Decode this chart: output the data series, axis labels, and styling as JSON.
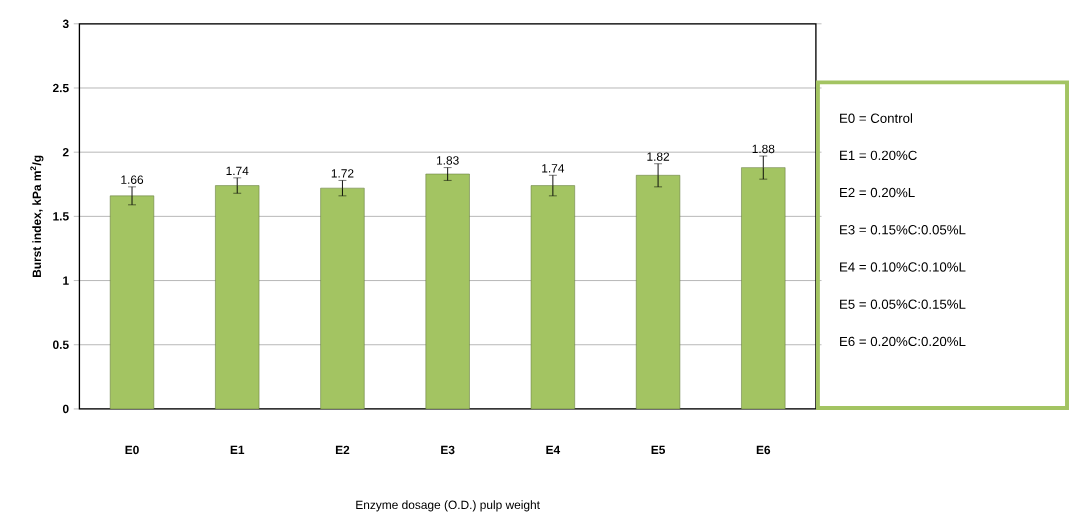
{
  "chart_data": {
    "type": "bar",
    "xlabel": "Enzyme dosage (O.D.) pulp weight",
    "ylabel": "Burst index, kPa m$^{2}$/g",
    "categories": [
      "E0",
      "E1",
      "E2",
      "E3",
      "E4",
      "E5",
      "E6"
    ],
    "values": [
      1.66,
      1.74,
      1.72,
      1.83,
      1.74,
      1.82,
      1.88
    ],
    "errors": [
      0.07,
      0.06,
      0.06,
      0.05,
      0.08,
      0.09,
      0.09
    ],
    "color": "#a3c462",
    "ylim": [
      0,
      3
    ],
    "yticks": [
      0,
      0.5,
      1,
      1.5,
      2,
      2.5,
      3
    ],
    "grid": "y",
    "data_labels": true,
    "annotations": [
      "E0 = Control",
      "E1 = 0.20%C",
      "E2 = 0.20%L",
      "E3 = 0.15%C:0.05%L",
      "E4 = 0.10%C:0.10%L",
      "E5 = 0.05%C:0.15%L",
      "E6 = 0.20%C:0.20%L"
    ]
  }
}
